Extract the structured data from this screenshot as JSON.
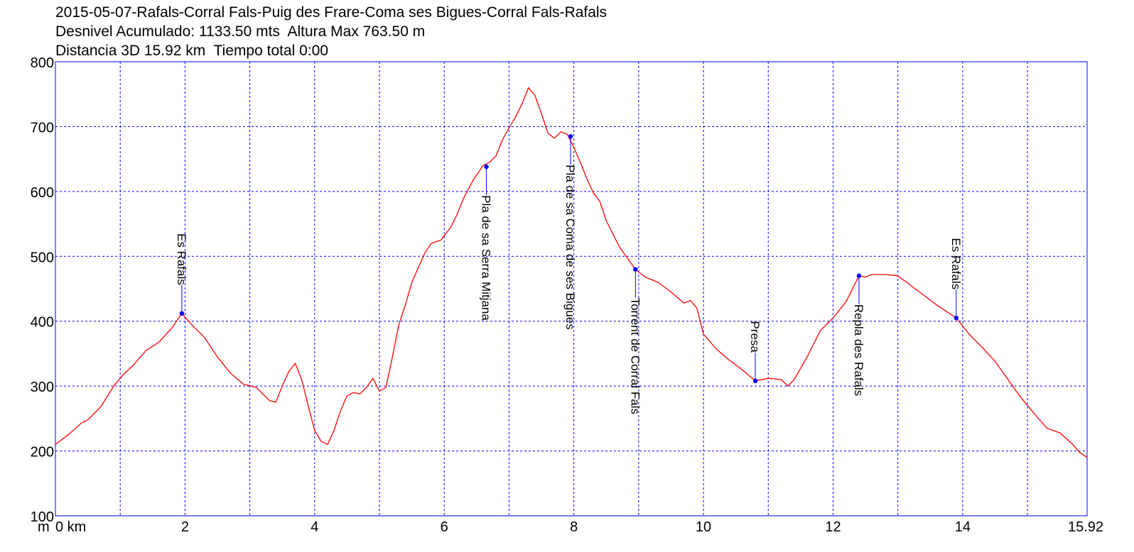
{
  "header": {
    "line1": "2015-05-07-Rafals-Corral Fals-Puig des Frare-Coma ses Bigues-Corral Fals-Rafals",
    "line2": "Desnivel Acumulado: 1133.50 mts  Altura Max 763.50 m",
    "line3": "Distancia 3D 15.92 km  Tiempo total 0:00"
  },
  "chart_data": {
    "type": "line",
    "xlim": [
      0,
      15.92
    ],
    "ylim": [
      100,
      800
    ],
    "x_ticks": [
      0,
      2,
      4,
      6,
      8,
      10,
      12,
      14,
      15.92
    ],
    "x_tick_labels": [
      "0 km",
      "2",
      "4",
      "6",
      "8",
      "10",
      "12",
      "14",
      "15.92"
    ],
    "x_minor_ticks": [
      1,
      3,
      5,
      7,
      9,
      11,
      13,
      15
    ],
    "y_ticks": [
      100,
      200,
      300,
      400,
      500,
      600,
      700,
      800
    ],
    "y_tick_labels": [
      "100",
      "200",
      "300",
      "400",
      "500",
      "600",
      "700",
      "800"
    ],
    "y_unit_label": "m",
    "grid": true,
    "colors": {
      "line": "#ff0000",
      "frame": "#0000ff",
      "grid": "#0000ff",
      "marker": "#0000ff"
    },
    "series": [
      {
        "x": [
          0,
          0.2,
          0.4,
          0.5,
          0.7,
          0.9,
          1.05,
          1.2,
          1.4,
          1.6,
          1.8,
          1.95,
          2.1,
          2.3,
          2.5,
          2.7,
          2.9,
          3.1,
          3.3,
          3.4,
          3.5,
          3.6,
          3.7,
          3.8,
          3.9,
          4.0,
          4.1,
          4.2,
          4.3,
          4.4,
          4.5,
          4.6,
          4.7,
          4.8,
          4.9,
          5.0,
          5.1,
          5.2,
          5.3,
          5.4,
          5.5,
          5.7,
          5.8,
          5.95,
          6.1,
          6.2,
          6.3,
          6.45,
          6.6,
          6.7,
          6.8,
          6.9,
          7.0,
          7.1,
          7.2,
          7.3,
          7.4,
          7.5,
          7.6,
          7.7,
          7.8,
          7.9,
          8.0,
          8.1,
          8.2,
          8.3,
          8.4,
          8.5,
          8.7,
          8.95,
          9.1,
          9.3,
          9.5,
          9.7,
          9.8,
          9.9,
          10.0,
          10.2,
          10.4,
          10.6,
          10.8,
          11.0,
          11.2,
          11.3,
          11.4,
          11.6,
          11.8,
          12.0,
          12.2,
          12.4,
          12.5,
          12.6,
          12.8,
          13.0,
          13.2,
          13.4,
          13.6,
          13.9,
          14.1,
          14.3,
          14.5,
          14.7,
          14.9,
          15.1,
          15.3,
          15.5,
          15.7,
          15.8,
          15.92
        ],
        "y": [
          210,
          225,
          243,
          248,
          268,
          300,
          318,
          332,
          355,
          368,
          390,
          412,
          395,
          375,
          345,
          320,
          303,
          298,
          278,
          275,
          300,
          322,
          335,
          310,
          270,
          232,
          215,
          210,
          232,
          262,
          285,
          290,
          288,
          298,
          312,
          292,
          298,
          345,
          395,
          425,
          460,
          505,
          520,
          525,
          545,
          565,
          590,
          618,
          640,
          645,
          655,
          680,
          698,
          715,
          735,
          760,
          748,
          720,
          690,
          682,
          692,
          688,
          668,
          645,
          620,
          598,
          585,
          555,
          515,
          480,
          468,
          460,
          445,
          428,
          432,
          420,
          380,
          357,
          340,
          325,
          308,
          312,
          310,
          300,
          310,
          345,
          385,
          405,
          430,
          470,
          468,
          472,
          472,
          470,
          455,
          440,
          425,
          405,
          380,
          360,
          338,
          310,
          282,
          258,
          235,
          228,
          210,
          198,
          190
        ]
      }
    ],
    "waypoints": [
      {
        "x": 1.95,
        "y": 412,
        "label": "Es Rafals",
        "label_side": "up"
      },
      {
        "x": 6.65,
        "y": 638,
        "label": "Pla de sa Serra Mitjana",
        "label_side": "down"
      },
      {
        "x": 7.95,
        "y": 685,
        "label": "Pla de sa Coma de ses Bigues",
        "label_side": "down"
      },
      {
        "x": 8.95,
        "y": 480,
        "label": "Torrent de Corral Fals",
        "label_side": "down"
      },
      {
        "x": 10.8,
        "y": 308,
        "label": "Presa",
        "label_side": "up"
      },
      {
        "x": 12.4,
        "y": 470,
        "label": "Repla des Rafals",
        "label_side": "down"
      },
      {
        "x": 13.9,
        "y": 405,
        "label": "Es Rafals",
        "label_side": "up"
      }
    ]
  }
}
